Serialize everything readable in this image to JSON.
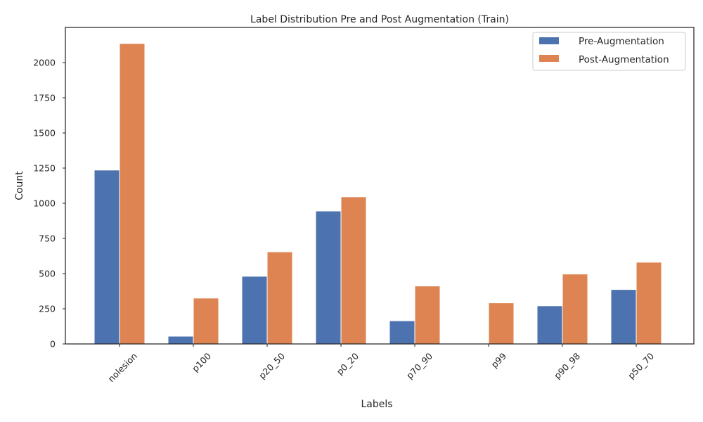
{
  "chart_data": {
    "type": "bar",
    "title": "Label Distribution Pre and Post Augmentation (Train)",
    "xlabel": "Labels",
    "ylabel": "Count",
    "categories": [
      "nolesion",
      "p100",
      "p20_50",
      "p0_20",
      "p70_90",
      "p99",
      "p90_98",
      "p50_70"
    ],
    "series": [
      {
        "name": "Pre-Augmentation",
        "color": "#4c72b0",
        "values": [
          1236,
          55,
          481,
          945,
          165,
          0,
          271,
          387
        ]
      },
      {
        "name": "Post-Augmentation",
        "color": "#dd8452",
        "values": [
          2136,
          326,
          655,
          1046,
          412,
          292,
          497,
          581
        ]
      }
    ],
    "ylim": [
      0,
      2250
    ],
    "yticks": [
      0,
      250,
      500,
      750,
      1000,
      1250,
      1500,
      1750,
      2000
    ],
    "grid": false,
    "legend_position": "top-right"
  }
}
